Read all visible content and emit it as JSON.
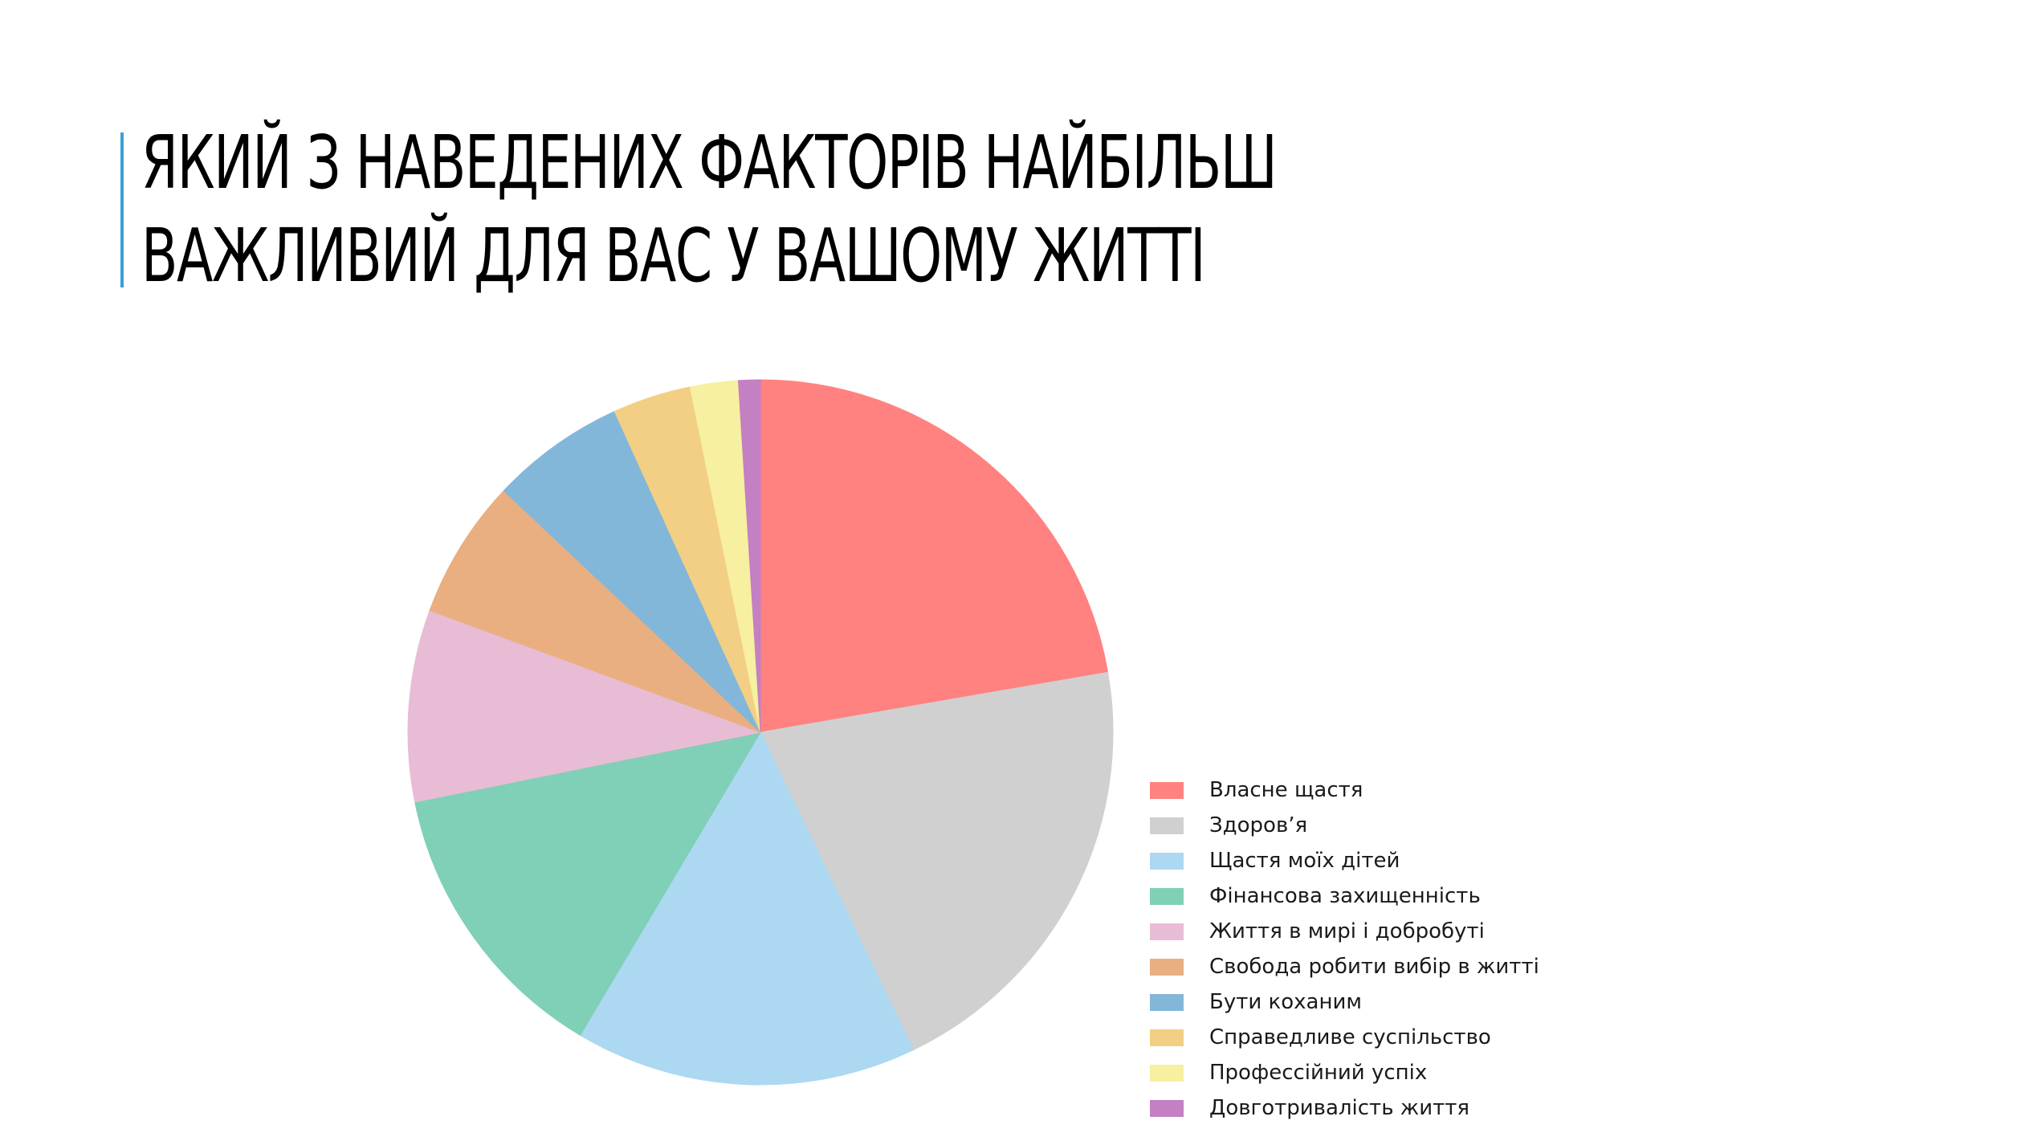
{
  "slide": {
    "title_line1": "ЯКИЙ З НАВЕДЕНИХ ФАКТОРІВ НАЙБІЛЬШ",
    "title_line2": "ВАЖЛИВИЙ ДЛЯ ВАС У ВАШОМУ ЖИТТІ"
  },
  "chart_data": {
    "type": "pie",
    "title": "ЯКИЙ З НАВЕДЕНИХ ФАКТОРІВ НАЙБІЛЬШ ВАЖЛИВИЙ ДЛЯ ВАС У ВАШОМУ ЖИТТІ",
    "start": "12 o'clock",
    "direction": "clockwise",
    "legend_position": "bottom-right",
    "categories": [
      "Власне щастя",
      "Здоров’я",
      "Щастя моїх дітей",
      "Фінансова захищенність",
      "Життя в мирі і добробуті",
      "Свобода робити вибір в житті",
      "Бути коханим",
      "Справедливе суспільство",
      "Професійний успіх",
      "Довготривалість життя"
    ],
    "legend_labels": [
      "Власне щастя",
      "Здоров’я",
      "Щастя моїх дітей",
      "Фінансова захищенність",
      "Життя в мирі і добробуті",
      "Свобода робити вибір в житті",
      "Бути коханим",
      "Справедливе суспільство",
      "Профессійний успіх",
      "Довготривалість життя"
    ],
    "values": [
      22.3,
      20.6,
      15.7,
      13.3,
      8.8,
      6.4,
      6.2,
      3.6,
      2.2,
      1.0
    ],
    "colors": [
      "#ff8280",
      "#d0d0d0",
      "#acd8f2",
      "#80cfb7",
      "#e8bcd5",
      "#e9af80",
      "#82b7d9",
      "#f2cf84",
      "#f6f0a0",
      "#c380c2"
    ]
  }
}
